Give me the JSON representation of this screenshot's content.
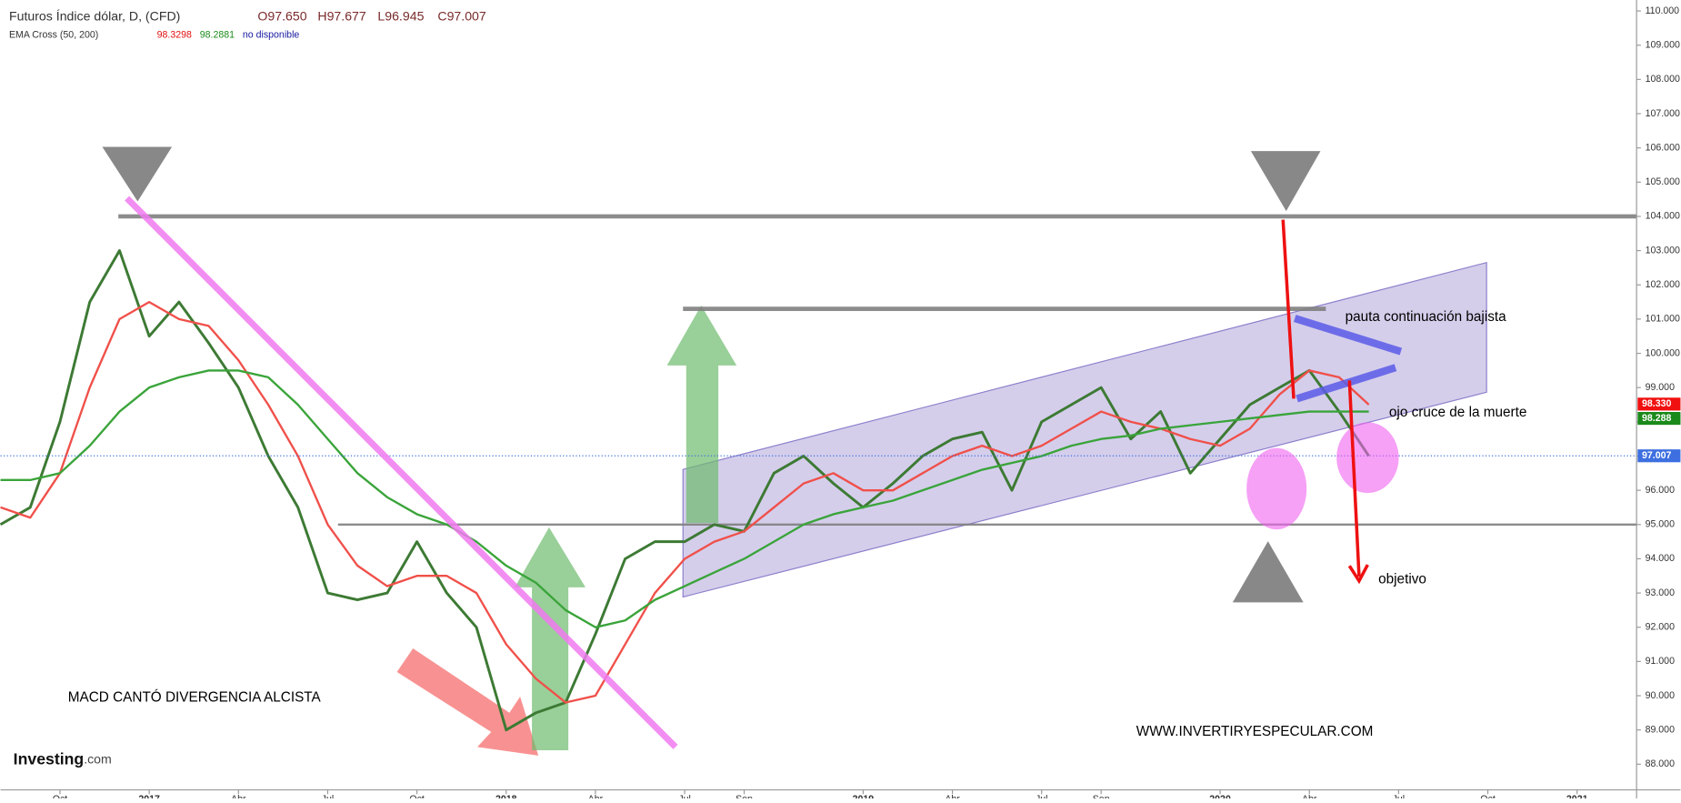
{
  "chart_data": {
    "type": "line",
    "title": "Futuros Índice dólar, D, (CFD)",
    "ohlc_labels": [
      "O97.650",
      "H97.677",
      "L96.945",
      "C97.007"
    ],
    "indicator": "EMA Cross (50, 200)",
    "indicator_values": [
      "98.3298",
      "98.2881",
      "no disponible"
    ],
    "x": [
      "2016-08",
      "2016-09",
      "2016-10",
      "2016-11",
      "2016-12",
      "2017-01",
      "2017-02",
      "2017-03",
      "2017-04",
      "2017-05",
      "2017-06",
      "2017-07",
      "2017-08",
      "2017-09",
      "2017-10",
      "2017-11",
      "2017-12",
      "2018-01",
      "2018-02",
      "2018-03",
      "2018-04",
      "2018-05",
      "2018-06",
      "2018-07",
      "2018-08",
      "2018-09",
      "2018-10",
      "2018-11",
      "2018-12",
      "2019-01",
      "2019-02",
      "2019-03",
      "2019-04",
      "2019-05",
      "2019-06",
      "2019-07",
      "2019-08",
      "2019-09",
      "2019-10",
      "2019-11",
      "2019-12",
      "2020-01",
      "2020-02",
      "2020-03",
      "2020-04",
      "2020-05",
      "2020-06"
    ],
    "series": [
      {
        "color": "#3d7a34",
        "values": [
          95.0,
          95.5,
          98.0,
          101.5,
          103.0,
          100.5,
          101.5,
          100.3,
          99.0,
          97.0,
          95.5,
          93.0,
          92.8,
          93.0,
          94.5,
          93.0,
          92.0,
          89.0,
          89.5,
          89.8,
          91.8,
          94.0,
          94.5,
          94.5,
          95.0,
          94.8,
          96.5,
          97.0,
          96.2,
          95.5,
          96.2,
          97.0,
          97.5,
          97.7,
          96.0,
          98.0,
          98.5,
          99.0,
          97.5,
          98.3,
          96.5,
          97.5,
          98.5,
          99.0,
          99.5,
          98.3,
          97.0
        ]
      },
      {
        "color": "#f0504a",
        "values": [
          95.5,
          95.2,
          96.5,
          99.0,
          101.0,
          101.5,
          101.0,
          100.8,
          99.8,
          98.5,
          97.0,
          95.0,
          93.8,
          93.2,
          93.5,
          93.5,
          93.0,
          91.5,
          90.5,
          89.8,
          90.0,
          91.5,
          93.0,
          94.0,
          94.5,
          94.8,
          95.5,
          96.2,
          96.5,
          96.0,
          96.0,
          96.5,
          97.0,
          97.3,
          97.0,
          97.3,
          97.8,
          98.3,
          98.0,
          97.8,
          97.5,
          97.3,
          97.8,
          98.8,
          99.5,
          99.3,
          98.5
        ]
      },
      {
        "color": "#3aa43a",
        "values": [
          96.3,
          96.3,
          96.5,
          97.3,
          98.3,
          99.0,
          99.3,
          99.5,
          99.5,
          99.3,
          98.5,
          97.5,
          96.5,
          95.8,
          95.3,
          95.0,
          94.5,
          93.8,
          93.3,
          92.5,
          92.0,
          92.2,
          92.8,
          93.2,
          93.6,
          94.0,
          94.5,
          95.0,
          95.3,
          95.5,
          95.7,
          96.0,
          96.3,
          96.6,
          96.8,
          97.0,
          97.3,
          97.5,
          97.6,
          97.8,
          97.9,
          98.0,
          98.1,
          98.2,
          98.3,
          98.3,
          98.3
        ]
      }
    ],
    "levels": [
      104,
      101.3,
      95
    ],
    "last_price": {
      "value": 97.007,
      "label": "97.007",
      "color": "#3d6fe0"
    },
    "ema_tags": [
      {
        "value": 98.33,
        "label": "98.330",
        "color": "#f01010"
      },
      {
        "value": 98.288,
        "label": "98.288",
        "color": "#1a8a1a"
      }
    ],
    "xlim": [
      "2016-08",
      "2021-03"
    ],
    "xticks": [
      {
        "value": "2016-10",
        "label": "Oct"
      },
      {
        "value": "2017-01",
        "label": "2017"
      },
      {
        "value": "2017-04",
        "label": "Abr"
      },
      {
        "value": "2017-07",
        "label": "Jul"
      },
      {
        "value": "2017-10",
        "label": "Oct"
      },
      {
        "value": "2018-01",
        "label": "2018"
      },
      {
        "value": "2018-04",
        "label": "Abr"
      },
      {
        "value": "2018-07",
        "label": "Jul"
      },
      {
        "value": "2018-09",
        "label": "Sep"
      },
      {
        "value": "2019-01",
        "label": "2019"
      },
      {
        "value": "2019-04",
        "label": "Abr"
      },
      {
        "value": "2019-07",
        "label": "Jul"
      },
      {
        "value": "2019-09",
        "label": "Sep"
      },
      {
        "value": "2020-01",
        "label": "2020"
      },
      {
        "value": "2020-04",
        "label": "Abr"
      },
      {
        "value": "2020-07",
        "label": "Jul"
      },
      {
        "value": "2020-10",
        "label": "Oct"
      },
      {
        "value": "2021-01",
        "label": "2021"
      }
    ],
    "ylim": [
      87.25,
      110.32
    ],
    "yticks": [
      {
        "value": 88,
        "label": "88.000"
      },
      {
        "value": 89,
        "label": "89.000"
      },
      {
        "value": 90,
        "label": "90.000"
      },
      {
        "value": 91,
        "label": "91.000"
      },
      {
        "value": 92,
        "label": "92.000"
      },
      {
        "value": 93,
        "label": "93.000"
      },
      {
        "value": 94,
        "label": "94.000"
      },
      {
        "value": 95,
        "label": "95.000"
      },
      {
        "value": 96,
        "label": "96.000"
      },
      {
        "value": 97,
        "label": "97.000"
      },
      {
        "value": 98,
        "label": "98.000"
      },
      {
        "value": 99,
        "label": "99.000"
      },
      {
        "value": 100,
        "label": "100.000"
      },
      {
        "value": 101,
        "label": "101.000"
      },
      {
        "value": 102,
        "label": "102.000"
      },
      {
        "value": 103,
        "label": "103.000"
      },
      {
        "value": 104,
        "label": "104.000"
      },
      {
        "value": 105,
        "label": "105.000"
      },
      {
        "value": 106,
        "label": "106.000"
      },
      {
        "value": 107,
        "label": "107.000"
      },
      {
        "value": 108,
        "label": "108.000"
      },
      {
        "value": 109,
        "label": "109.000"
      },
      {
        "value": 110,
        "label": "110.000"
      }
    ],
    "annotations": [
      "pauta continuación bajista",
      "ojo cruce de la muerte",
      "objetivo",
      "MACD CANTÓ DIVERGENCIA ALCISTA",
      "WWW.INVERTIRYESPECULAR.COM"
    ],
    "logo": "Investing",
    "logo_suffix": ".com"
  }
}
